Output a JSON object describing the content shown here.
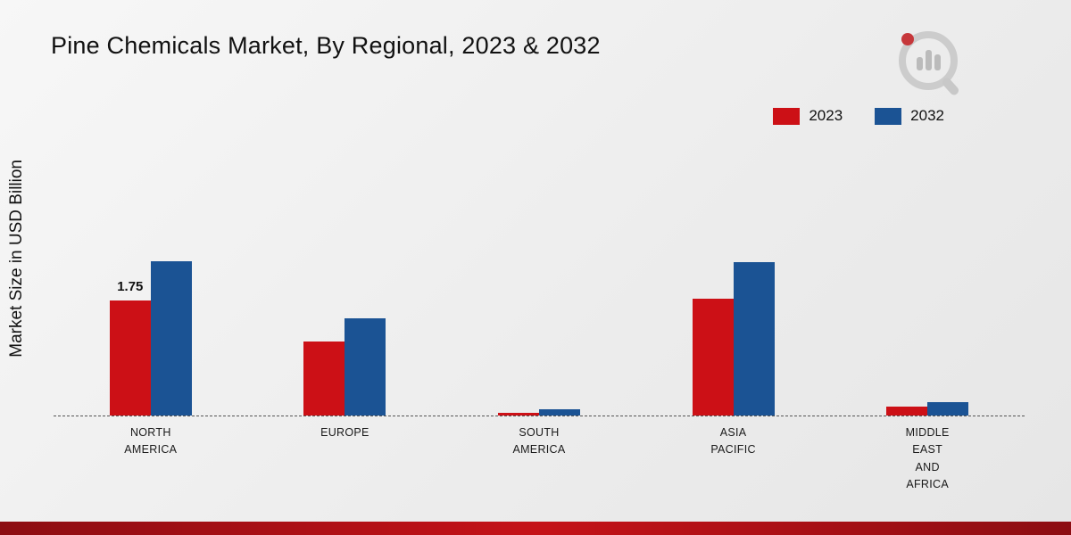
{
  "title": "Pine Chemicals Market, By Regional, 2023 & 2032",
  "ylabel": "Market Size in USD Billion",
  "legend": [
    {
      "label": "2023",
      "color": "#cc1016"
    },
    {
      "label": "2032",
      "color": "#1b5394"
    }
  ],
  "brand": {
    "footer_color_dark": "#8c0d12",
    "footer_color_bright": "#c51218",
    "logo_name": "market-research-logo"
  },
  "chart_data": {
    "type": "bar",
    "title": "Pine Chemicals Market, By Regional, 2023 & 2032",
    "xlabel": "",
    "ylabel": "Market Size in USD Billion",
    "ylim": [
      0,
      4.6
    ],
    "grid": false,
    "baseline_style": "dashed",
    "legend_position": "top-right",
    "categories": [
      [
        "NORTH",
        "AMERICA"
      ],
      [
        "EUROPE"
      ],
      [
        "SOUTH",
        "AMERICA"
      ],
      [
        "ASIA",
        "PACIFIC"
      ],
      [
        "MIDDLE",
        "EAST",
        "AND",
        "AFRICA"
      ]
    ],
    "series": [
      {
        "name": "2023",
        "color": "#cc1016",
        "values": [
          1.75,
          1.12,
          0.04,
          1.78,
          0.13
        ]
      },
      {
        "name": "2032",
        "color": "#1b5394",
        "values": [
          2.35,
          1.48,
          0.09,
          2.34,
          0.2
        ]
      }
    ],
    "annotations": [
      {
        "series": "2023",
        "category_index": 0,
        "text": "1.75"
      }
    ]
  }
}
